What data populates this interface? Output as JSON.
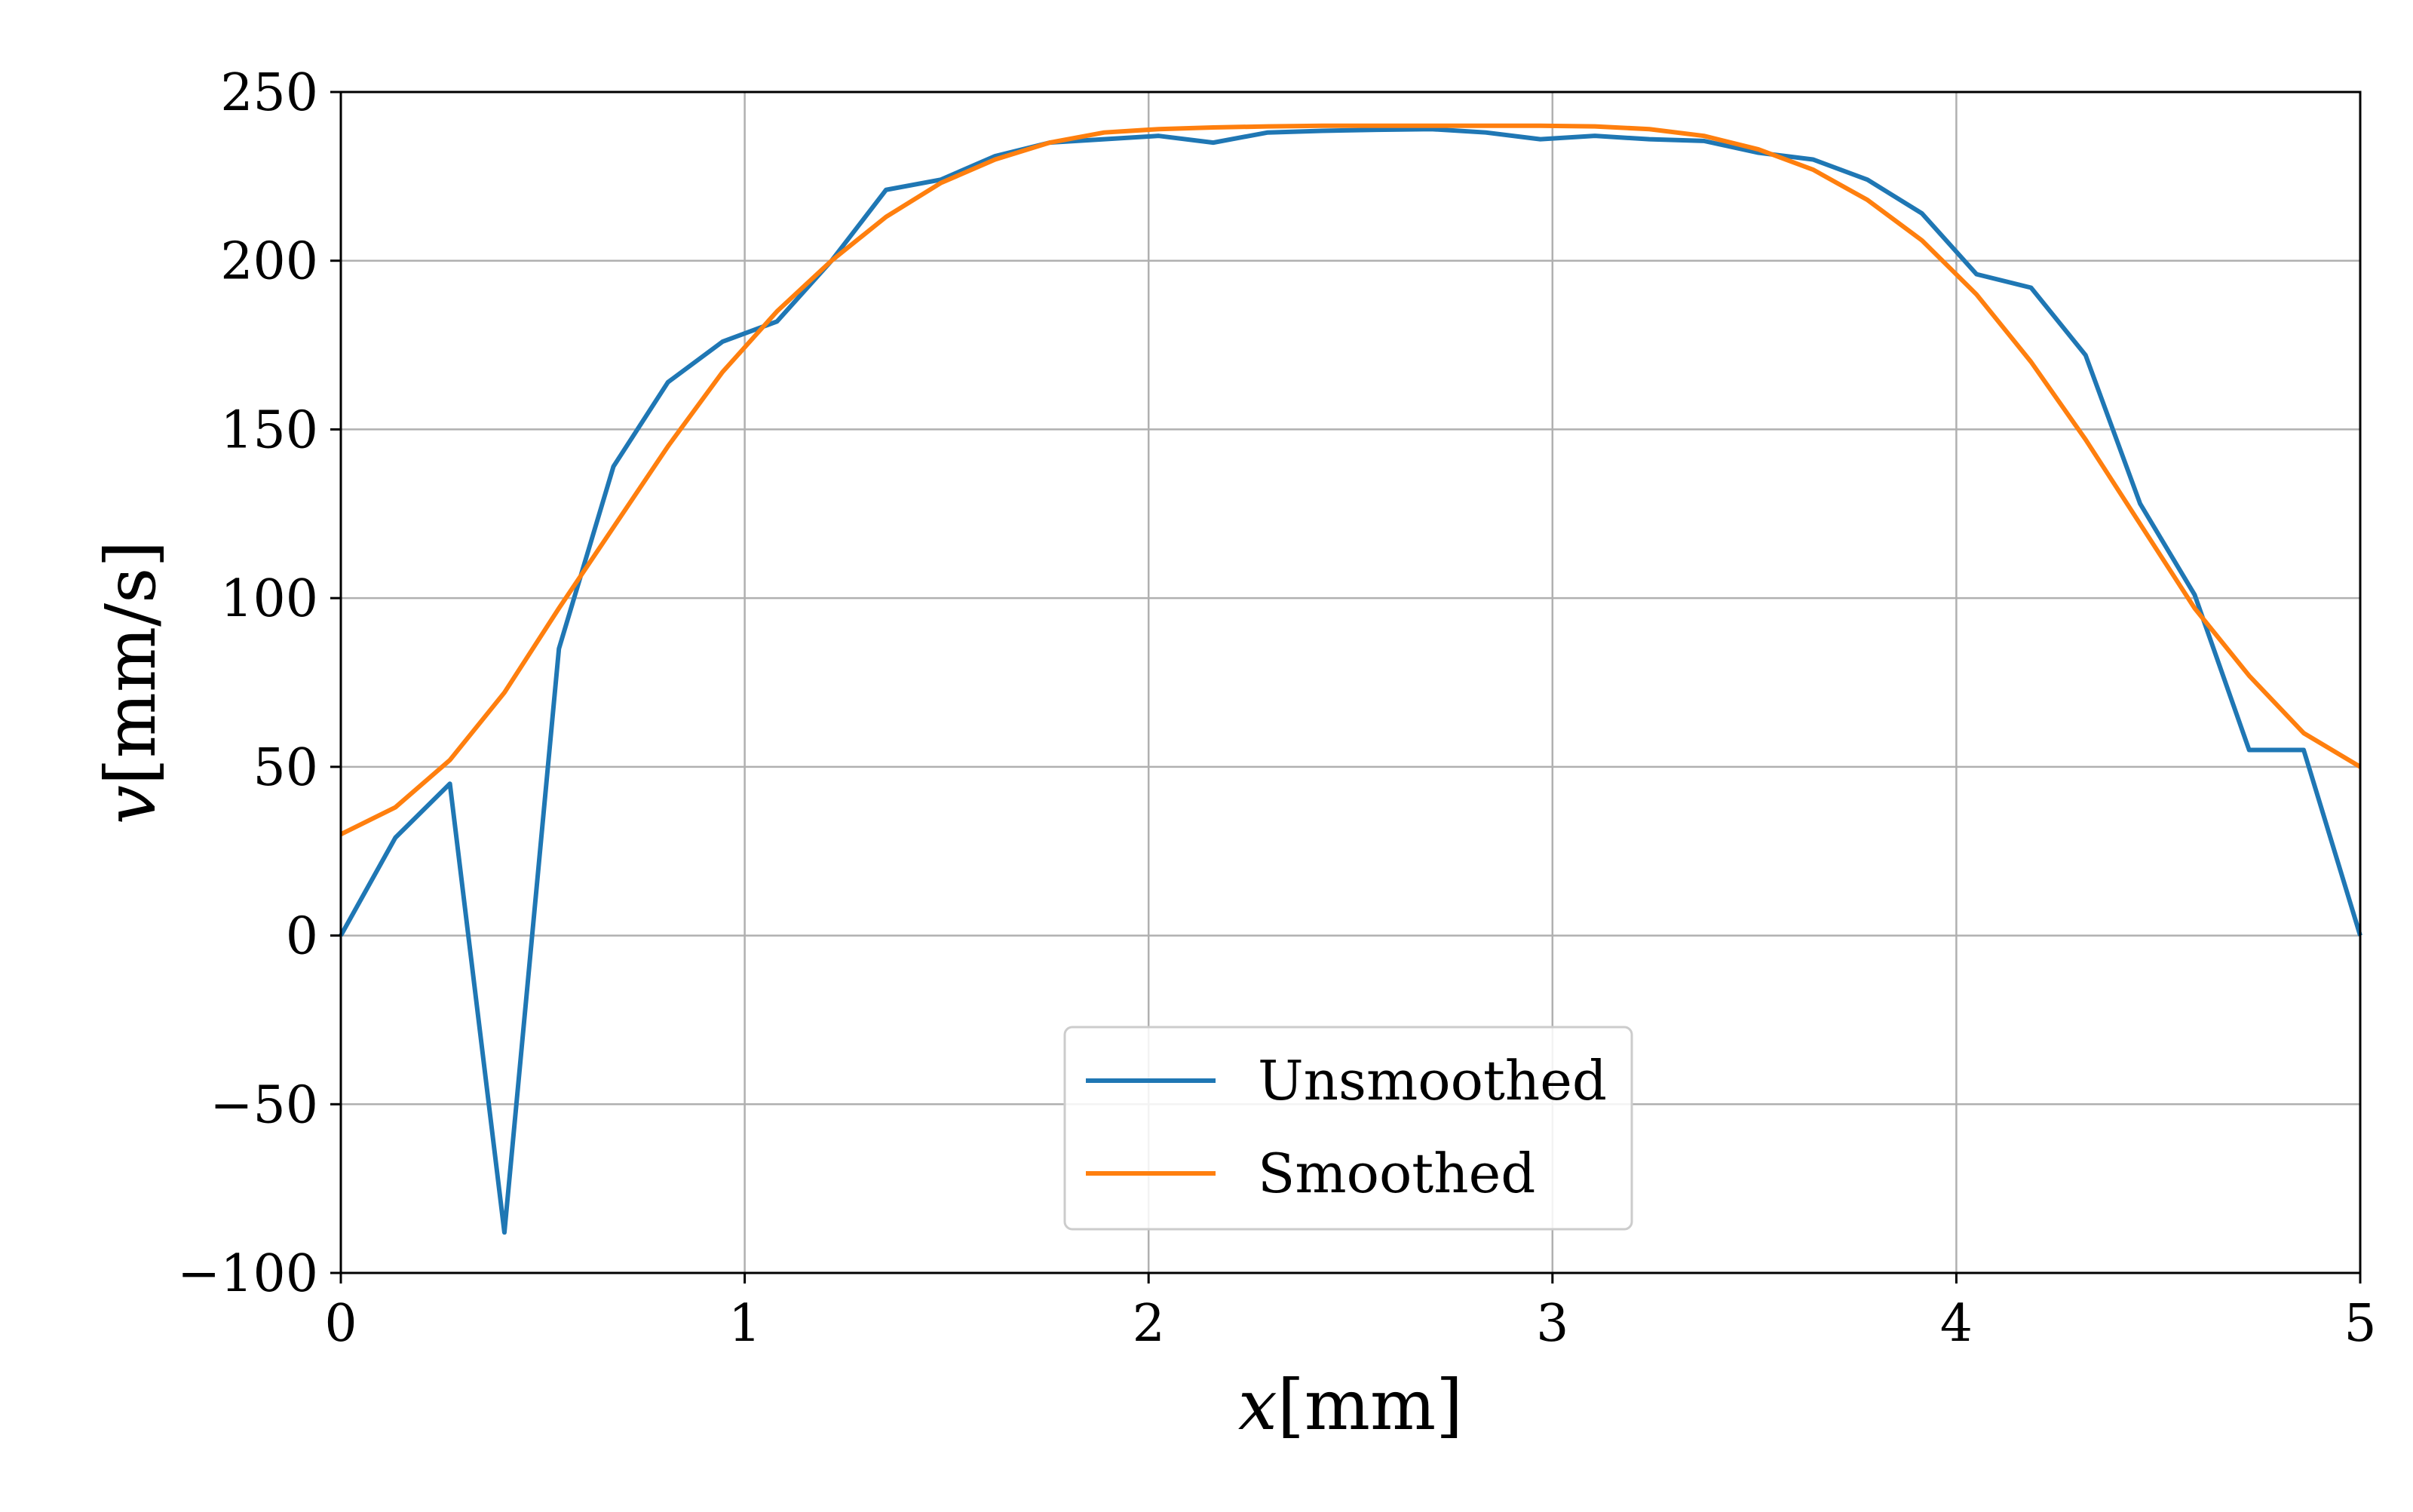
{
  "chart_data": {
    "type": "line",
    "xlabel_var": "x",
    "xlabel_unit": "[mm]",
    "ylabel_var": "v",
    "ylabel_unit": "[mm/s]",
    "xlim": [
      0,
      5
    ],
    "ylim": [
      -100,
      250
    ],
    "grid": true,
    "legend_placement": "bottom-center",
    "xticks": [
      0,
      1,
      2,
      3,
      4,
      5
    ],
    "xtick_labels": [
      "0",
      "1",
      "2",
      "3",
      "4",
      "5"
    ],
    "yticks": [
      -100,
      -50,
      0,
      50,
      100,
      150,
      200,
      250
    ],
    "ytick_labels": [
      "−100",
      "−50",
      "0",
      "50",
      "100",
      "150",
      "200",
      "250"
    ],
    "x": [
      0,
      0.135,
      0.27,
      0.405,
      0.54,
      0.675,
      0.81,
      0.945,
      1.08,
      1.215,
      1.35,
      1.485,
      1.62,
      1.755,
      1.89,
      2.025,
      2.16,
      2.295,
      2.43,
      2.565,
      2.7,
      2.835,
      2.97,
      3.105,
      3.24,
      3.375,
      3.51,
      3.645,
      3.78,
      3.915,
      4.05,
      4.185,
      4.32,
      4.455,
      4.59,
      4.725,
      4.86,
      5.0
    ],
    "series": [
      {
        "name": "Unsmoothed",
        "color": "#1f77b4",
        "values": [
          0,
          29,
          45,
          -88,
          85,
          139,
          164,
          176,
          182,
          200,
          221,
          224,
          231,
          235,
          236,
          237,
          235,
          238,
          238.5,
          238.8,
          239,
          238,
          236,
          237,
          236,
          235.5,
          232,
          230,
          224,
          214,
          196,
          192,
          172,
          128,
          101,
          55,
          55,
          0
        ]
      },
      {
        "name": "Smoothed",
        "color": "#ff7f0e",
        "values": [
          30,
          38,
          52,
          72,
          97,
          121,
          145,
          167,
          185,
          200,
          213,
          223,
          230,
          235,
          238,
          239,
          239.5,
          239.8,
          240,
          240,
          240,
          240,
          240,
          239.8,
          239,
          237,
          233,
          227,
          218,
          206,
          190,
          170,
          147,
          122,
          97,
          77,
          60,
          50
        ]
      }
    ]
  }
}
